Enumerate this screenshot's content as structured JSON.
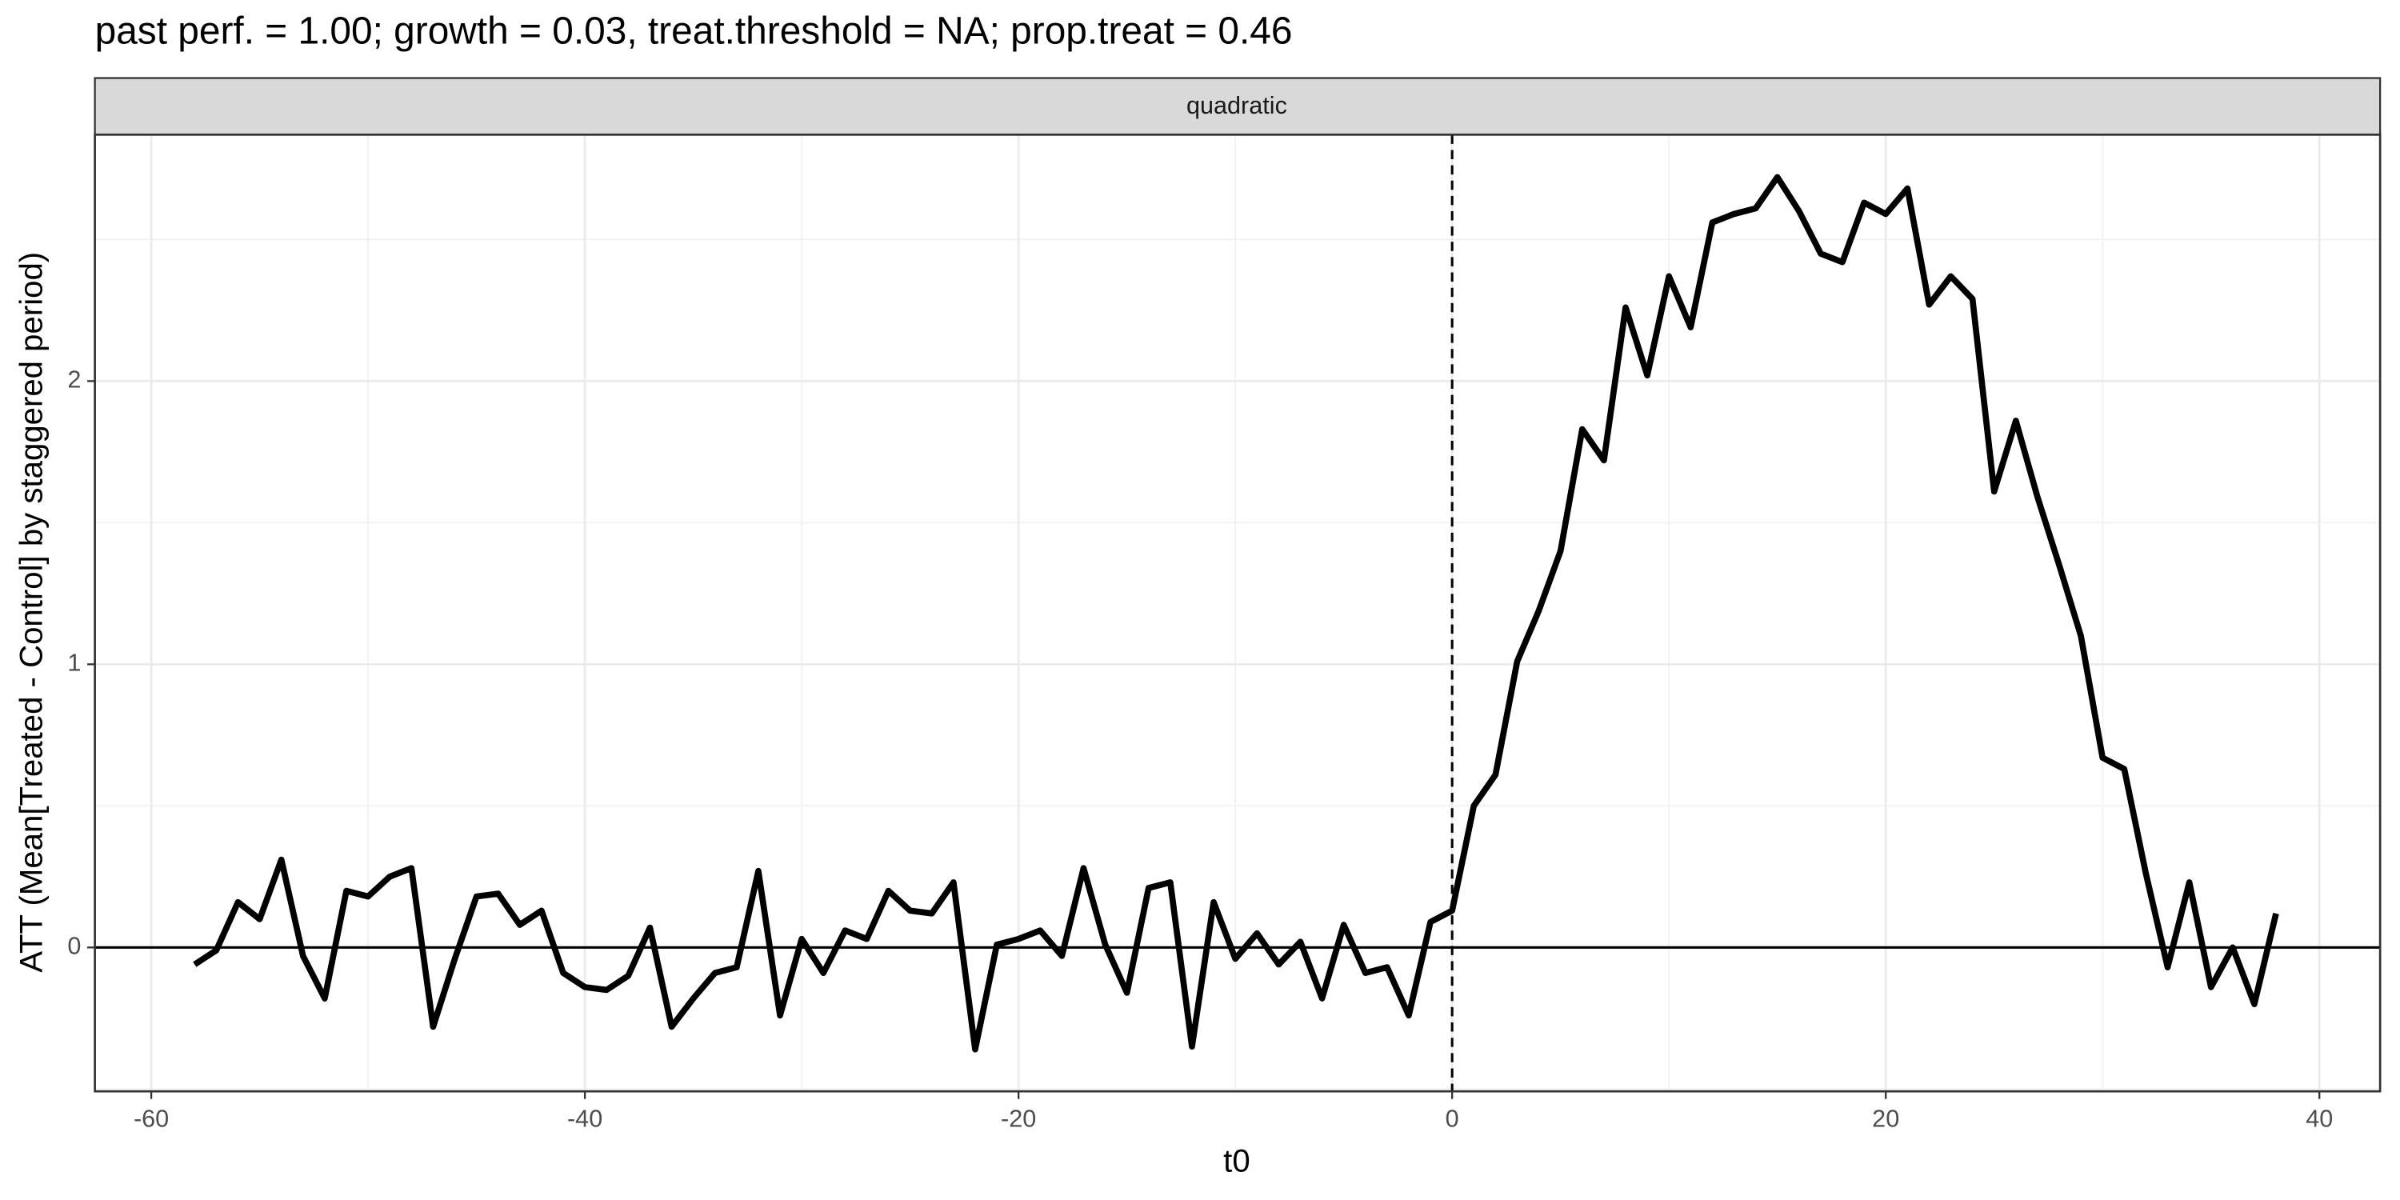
{
  "chart_data": {
    "type": "line",
    "title": "past perf. = 1.00; growth = 0.03,  treat.threshold = NA;  prop.treat = 0.46",
    "facet_label": "quadratic",
    "xlabel": "t0",
    "ylabel": "ATT (Mean[Treated - Control] by staggered period)",
    "color": "#000000",
    "grid": true,
    "hline": 0,
    "vline": 0,
    "x": [
      -58,
      -57,
      -56,
      -55,
      -54,
      -53,
      -52,
      -51,
      -50,
      -49,
      -48,
      -47,
      -46,
      -45,
      -44,
      -43,
      -42,
      -41,
      -40,
      -39,
      -38,
      -37,
      -36,
      -35,
      -34,
      -33,
      -32,
      -31,
      -30,
      -29,
      -28,
      -27,
      -26,
      -25,
      -24,
      -23,
      -22,
      -21,
      -20,
      -19,
      -18,
      -17,
      -16,
      -15,
      -14,
      -13,
      -12,
      -11,
      -10,
      -9,
      -8,
      -7,
      -6,
      -5,
      -4,
      -3,
      -2,
      -1,
      0,
      1,
      2,
      3,
      4,
      5,
      6,
      7,
      8,
      9,
      10,
      11,
      12,
      13,
      14,
      15,
      16,
      17,
      18,
      19,
      20,
      21,
      22,
      23,
      24,
      25,
      26,
      27,
      28,
      29,
      30,
      31,
      32,
      33,
      34,
      35,
      36,
      37,
      38
    ],
    "values": [
      -0.06,
      -0.01,
      0.16,
      0.1,
      0.31,
      -0.03,
      -0.18,
      0.2,
      0.18,
      0.25,
      0.28,
      -0.28,
      -0.04,
      0.18,
      0.19,
      0.08,
      0.13,
      -0.09,
      -0.14,
      -0.15,
      -0.1,
      0.07,
      -0.28,
      -0.18,
      -0.09,
      -0.07,
      0.27,
      -0.24,
      0.03,
      -0.09,
      0.06,
      0.03,
      0.2,
      0.13,
      0.12,
      0.23,
      -0.36,
      0.01,
      0.03,
      0.06,
      -0.03,
      0.28,
      0.01,
      -0.16,
      0.21,
      0.23,
      -0.35,
      0.16,
      -0.04,
      0.05,
      -0.06,
      0.02,
      -0.18,
      0.08,
      -0.09,
      -0.07,
      -0.24,
      0.09,
      0.13,
      0.5,
      0.61,
      1.01,
      1.19,
      1.4,
      1.83,
      1.72,
      2.26,
      2.02,
      2.37,
      2.19,
      2.56,
      2.59,
      2.61,
      2.72,
      2.6,
      2.45,
      2.42,
      2.63,
      2.59,
      2.68,
      2.27,
      2.37,
      2.29,
      1.61,
      1.86,
      1.59,
      1.35,
      1.1,
      0.67,
      0.63,
      0.26,
      -0.07,
      0.23,
      -0.14,
      0.0,
      -0.2,
      0.12
    ],
    "xlim": [
      -62.6,
      42.8
    ],
    "ylim": [
      -0.508,
      2.87
    ],
    "xticks": [
      -60,
      -40,
      -20,
      0,
      20,
      40
    ],
    "yticks": [
      0,
      1,
      2
    ]
  }
}
